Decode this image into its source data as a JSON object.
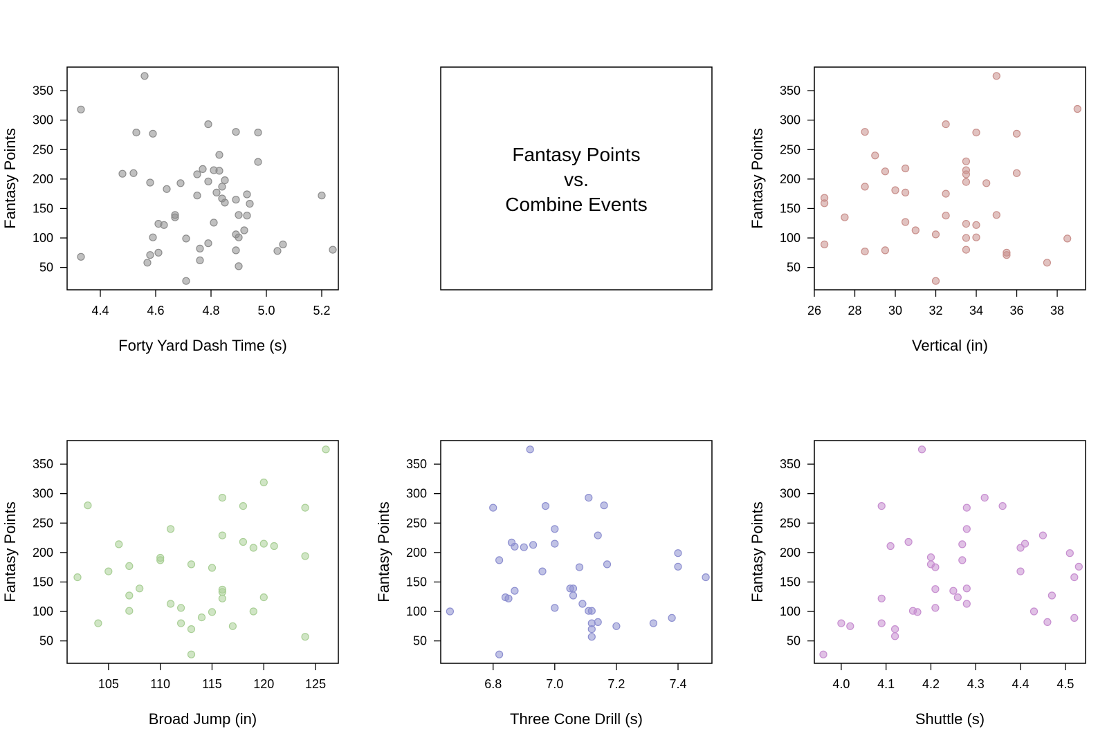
{
  "title_panel": {
    "lines": [
      "Fantasy Points",
      "vs.",
      "Combine Events"
    ]
  },
  "chart_data": [
    {
      "type": "scatter",
      "title": "",
      "xlabel": "Forty Yard Dash Time (s)",
      "ylabel": "Fantasy Points",
      "xlim": [
        4.28,
        5.26
      ],
      "ylim": [
        12,
        390
      ],
      "xticks": [
        4.4,
        4.6,
        4.8,
        5.0,
        5.2
      ],
      "xtick_labels": [
        "4.4",
        "4.6",
        "4.8",
        "5.0",
        "5.2"
      ],
      "yticks": [
        50,
        100,
        150,
        200,
        250,
        300,
        350
      ],
      "ytick_labels": [
        "50",
        "100",
        "150",
        "200",
        "250",
        "300",
        "350"
      ],
      "color": "#8c8c8c",
      "grid": false,
      "x": [
        4.33,
        4.33,
        4.48,
        4.52,
        4.53,
        4.56,
        4.57,
        4.58,
        4.58,
        4.59,
        4.59,
        4.61,
        4.61,
        4.63,
        4.64,
        4.67,
        4.67,
        4.69,
        4.71,
        4.71,
        4.75,
        4.75,
        4.76,
        4.76,
        4.77,
        4.79,
        4.79,
        4.79,
        4.81,
        4.81,
        4.82,
        4.83,
        4.83,
        4.84,
        4.84,
        4.85,
        4.85,
        4.89,
        4.89,
        4.89,
        4.89,
        4.9,
        4.9,
        4.9,
        4.92,
        4.93,
        4.93,
        4.94,
        4.97,
        4.97,
        5.04,
        5.06,
        5.2,
        5.24
      ],
      "y": [
        318,
        68,
        209,
        210,
        279,
        375,
        58,
        194,
        71,
        277,
        101,
        124,
        75,
        122,
        183,
        139,
        135,
        193,
        27,
        99,
        172,
        208,
        82,
        62,
        217,
        293,
        196,
        91,
        215,
        126,
        177,
        214,
        241,
        187,
        167,
        160,
        198,
        165,
        79,
        106,
        280,
        139,
        101,
        52,
        113,
        174,
        138,
        158,
        279,
        229,
        78,
        89,
        172,
        80
      ]
    },
    {
      "type": "scatter",
      "title": "",
      "xlabel": "Vertical (in)",
      "ylabel": "Fantasy Points",
      "xlim": [
        26,
        39.4
      ],
      "ylim": [
        12,
        390
      ],
      "xticks": [
        26,
        28,
        30,
        32,
        34,
        36,
        38
      ],
      "xtick_labels": [
        "26",
        "28",
        "30",
        "32",
        "34",
        "36",
        "38"
      ],
      "yticks": [
        50,
        100,
        150,
        200,
        250,
        300,
        350
      ],
      "ytick_labels": [
        "50",
        "100",
        "150",
        "200",
        "250",
        "300",
        "350"
      ],
      "color": "#c9908c",
      "grid": false,
      "x": [
        26.5,
        26.5,
        26.5,
        27.5,
        28.5,
        28.5,
        28.5,
        29.0,
        29.5,
        29.5,
        30.0,
        30.5,
        30.5,
        30.5,
        31.0,
        32.0,
        32.0,
        32.5,
        32.5,
        32.5,
        33.5,
        33.5,
        33.5,
        33.5,
        33.5,
        33.5,
        33.5,
        34.0,
        34.0,
        34.0,
        34.5,
        35.0,
        35.0,
        35.5,
        35.5,
        36.0,
        36.0,
        37.5,
        38.5,
        39.0
      ],
      "y": [
        168,
        159,
        89,
        135,
        280,
        187,
        77,
        240,
        213,
        79,
        181,
        218,
        177,
        127,
        113,
        106,
        27,
        293,
        175,
        138,
        230,
        215,
        208,
        195,
        124,
        100,
        80,
        279,
        122,
        101,
        193,
        375,
        139,
        75,
        71,
        277,
        210,
        58,
        99,
        319
      ]
    },
    {
      "type": "scatter",
      "title": "",
      "xlabel": "Broad Jump (in)",
      "ylabel": "Fantasy Points",
      "xlim": [
        101,
        127.2
      ],
      "ylim": [
        12,
        390
      ],
      "xticks": [
        105,
        110,
        115,
        120,
        125
      ],
      "xtick_labels": [
        "105",
        "110",
        "115",
        "120",
        "125"
      ],
      "yticks": [
        50,
        100,
        150,
        200,
        250,
        300,
        350
      ],
      "ytick_labels": [
        "50",
        "100",
        "150",
        "200",
        "250",
        "300",
        "350"
      ],
      "color": "#a9cf96",
      "grid": false,
      "x": [
        102,
        103,
        104,
        105,
        106,
        107,
        107,
        107,
        108,
        110,
        110,
        111,
        111,
        112,
        112,
        113,
        113,
        113,
        114,
        115,
        115,
        116,
        116,
        116,
        116,
        116,
        117,
        118,
        118,
        119,
        119,
        120,
        120,
        120,
        121,
        124,
        124,
        124,
        126
      ],
      "y": [
        158,
        280,
        80,
        168,
        214,
        177,
        127,
        101,
        139,
        191,
        187,
        240,
        113,
        106,
        80,
        180,
        70,
        27,
        90,
        174,
        99,
        293,
        229,
        137,
        133,
        122,
        75,
        279,
        218,
        208,
        100,
        319,
        215,
        124,
        211,
        276,
        194,
        57,
        375
      ]
    },
    {
      "type": "scatter",
      "title": "",
      "xlabel": "Three Cone Drill (s)",
      "ylabel": "Fantasy Points",
      "xlim": [
        6.63,
        7.51
      ],
      "ylim": [
        12,
        390
      ],
      "xticks": [
        6.8,
        7.0,
        7.2,
        7.4
      ],
      "xtick_labels": [
        "6.8",
        "7.0",
        "7.2",
        "7.4"
      ],
      "yticks": [
        50,
        100,
        150,
        200,
        250,
        300,
        350
      ],
      "ytick_labels": [
        "50",
        "100",
        "150",
        "200",
        "250",
        "300",
        "350"
      ],
      "color": "#8d8fd0",
      "grid": false,
      "x": [
        6.66,
        6.8,
        6.82,
        6.82,
        6.84,
        6.85,
        6.86,
        6.87,
        6.87,
        6.9,
        6.92,
        6.93,
        6.96,
        6.97,
        7.0,
        7.0,
        7.0,
        7.05,
        7.06,
        7.06,
        7.08,
        7.09,
        7.11,
        7.11,
        7.12,
        7.12,
        7.12,
        7.12,
        7.14,
        7.14,
        7.16,
        7.17,
        7.2,
        7.32,
        7.38,
        7.4,
        7.4,
        7.49
      ],
      "y": [
        100,
        276,
        187,
        27,
        124,
        122,
        217,
        210,
        135,
        209,
        375,
        213,
        168,
        279,
        240,
        215,
        106,
        139,
        139,
        127,
        175,
        113,
        293,
        101,
        101,
        80,
        70,
        57,
        229,
        82,
        280,
        180,
        75,
        80,
        89,
        199,
        176,
        158
      ]
    },
    {
      "type": "scatter",
      "title": "",
      "xlabel": "Shuttle (s)",
      "ylabel": "Fantasy Points",
      "xlim": [
        3.94,
        4.545
      ],
      "ylim": [
        12,
        390
      ],
      "xticks": [
        4.0,
        4.1,
        4.2,
        4.3,
        4.4,
        4.5
      ],
      "xtick_labels": [
        "4.0",
        "4.1",
        "4.2",
        "4.3",
        "4.4",
        "4.5"
      ],
      "yticks": [
        50,
        100,
        150,
        200,
        250,
        300,
        350
      ],
      "ytick_labels": [
        "50",
        "100",
        "150",
        "200",
        "250",
        "300",
        "350"
      ],
      "color": "#c78ed0",
      "grid": false,
      "x": [
        3.96,
        4.0,
        4.02,
        4.09,
        4.09,
        4.09,
        4.11,
        4.12,
        4.12,
        4.15,
        4.16,
        4.17,
        4.18,
        4.2,
        4.2,
        4.21,
        4.21,
        4.21,
        4.25,
        4.26,
        4.27,
        4.27,
        4.28,
        4.28,
        4.28,
        4.28,
        4.32,
        4.36,
        4.4,
        4.4,
        4.41,
        4.43,
        4.45,
        4.46,
        4.47,
        4.51,
        4.52,
        4.52,
        4.53
      ],
      "y": [
        27,
        80,
        75,
        279,
        122,
        80,
        211,
        70,
        58,
        218,
        101,
        99,
        375,
        192,
        180,
        175,
        138,
        106,
        135,
        124,
        214,
        187,
        276,
        240,
        139,
        113,
        293,
        279,
        208,
        168,
        215,
        100,
        229,
        82,
        127,
        199,
        158,
        89,
        176
      ]
    }
  ]
}
